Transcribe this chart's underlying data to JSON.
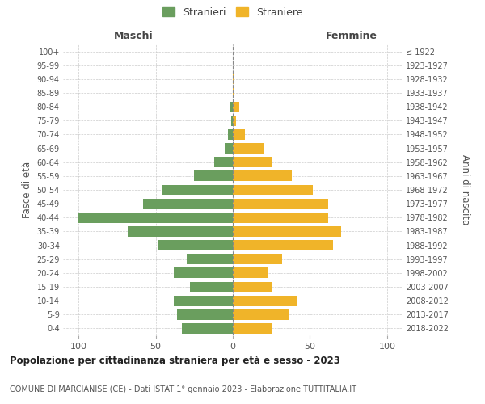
{
  "age_groups": [
    "0-4",
    "5-9",
    "10-14",
    "15-19",
    "20-24",
    "25-29",
    "30-34",
    "35-39",
    "40-44",
    "45-49",
    "50-54",
    "55-59",
    "60-64",
    "65-69",
    "70-74",
    "75-79",
    "80-84",
    "85-89",
    "90-94",
    "95-99",
    "100+"
  ],
  "birth_years": [
    "2018-2022",
    "2013-2017",
    "2008-2012",
    "2003-2007",
    "1998-2002",
    "1993-1997",
    "1988-1992",
    "1983-1987",
    "1978-1982",
    "1973-1977",
    "1968-1972",
    "1963-1967",
    "1958-1962",
    "1953-1957",
    "1948-1952",
    "1943-1947",
    "1938-1942",
    "1933-1937",
    "1928-1932",
    "1923-1927",
    "≤ 1922"
  ],
  "maschi": [
    33,
    36,
    38,
    28,
    38,
    30,
    48,
    68,
    100,
    58,
    46,
    25,
    12,
    5,
    3,
    1,
    2,
    0,
    0,
    0,
    0
  ],
  "femmine": [
    25,
    36,
    42,
    25,
    23,
    32,
    65,
    70,
    62,
    62,
    52,
    38,
    25,
    20,
    8,
    2,
    4,
    1,
    1,
    0,
    0
  ],
  "male_color": "#6a9e5e",
  "female_color": "#f0b429",
  "grid_color": "#cccccc",
  "title": "Popolazione per cittadinanza straniera per età e sesso - 2023",
  "subtitle": "COMUNE DI MARCIANISE (CE) - Dati ISTAT 1° gennaio 2023 - Elaborazione TUTTITALIA.IT",
  "ylabel_left": "Fasce di età",
  "ylabel_right": "Anni di nascita",
  "legend_stranieri": "Stranieri",
  "legend_straniere": "Straniere",
  "maschi_label": "Maschi",
  "femmine_label": "Femmine",
  "xlim": 110
}
